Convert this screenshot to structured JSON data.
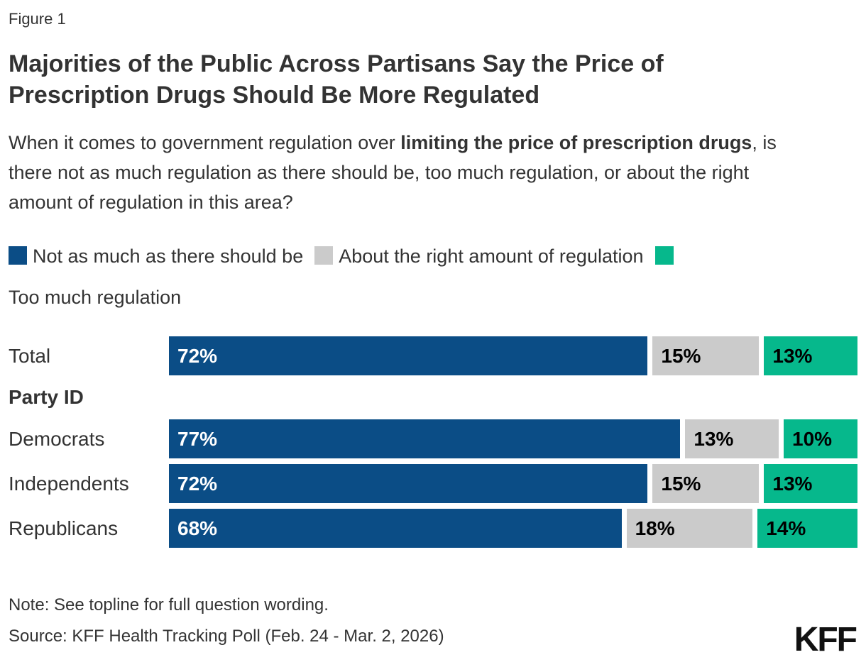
{
  "figure_label": "Figure 1",
  "title_lines": [
    "Majorities of the Public Across Partisans Say the Price of",
    "Prescription Drugs Should Be More Regulated"
  ],
  "subtitle_parts": [
    {
      "text": "When it comes to government regulation over ",
      "bold": false
    },
    {
      "text": "limiting the price of prescription drugs",
      "bold": true
    },
    {
      "text": ", is there not as much regulation as there should be, too much regulation, or about the right amount of regulation in this area?",
      "bold": false
    }
  ],
  "chart_data": {
    "type": "bar",
    "orientation": "horizontal",
    "stacked": true,
    "xlim": [
      0,
      100
    ],
    "value_suffix": "%",
    "legend_position": "top",
    "grid": false,
    "series": [
      {
        "name": "Not as much as there should be",
        "color": "#0B4D86",
        "text_color": "#FFFFFF"
      },
      {
        "name": "About the right amount of regulation",
        "color": "#CBCBCB",
        "text_color": "#000000"
      },
      {
        "name": "Too much regulation",
        "color": "#06B88C",
        "text_color": "#000000"
      }
    ],
    "rows": [
      {
        "type": "bar",
        "label": "Total",
        "values": [
          72,
          15,
          13
        ]
      },
      {
        "type": "heading",
        "label": "Party ID"
      },
      {
        "type": "bar",
        "label": "Democrats",
        "values": [
          77,
          13,
          10
        ]
      },
      {
        "type": "bar",
        "label": "Independents",
        "values": [
          72,
          15,
          13
        ]
      },
      {
        "type": "bar",
        "label": "Republicans",
        "values": [
          68,
          18,
          14
        ]
      }
    ]
  },
  "note": "Note: See topline for full question wording.",
  "source": "Source: KFF Health Tracking Poll (Feb. 24 - Mar. 2, 2026)",
  "logo_text": "KFF"
}
